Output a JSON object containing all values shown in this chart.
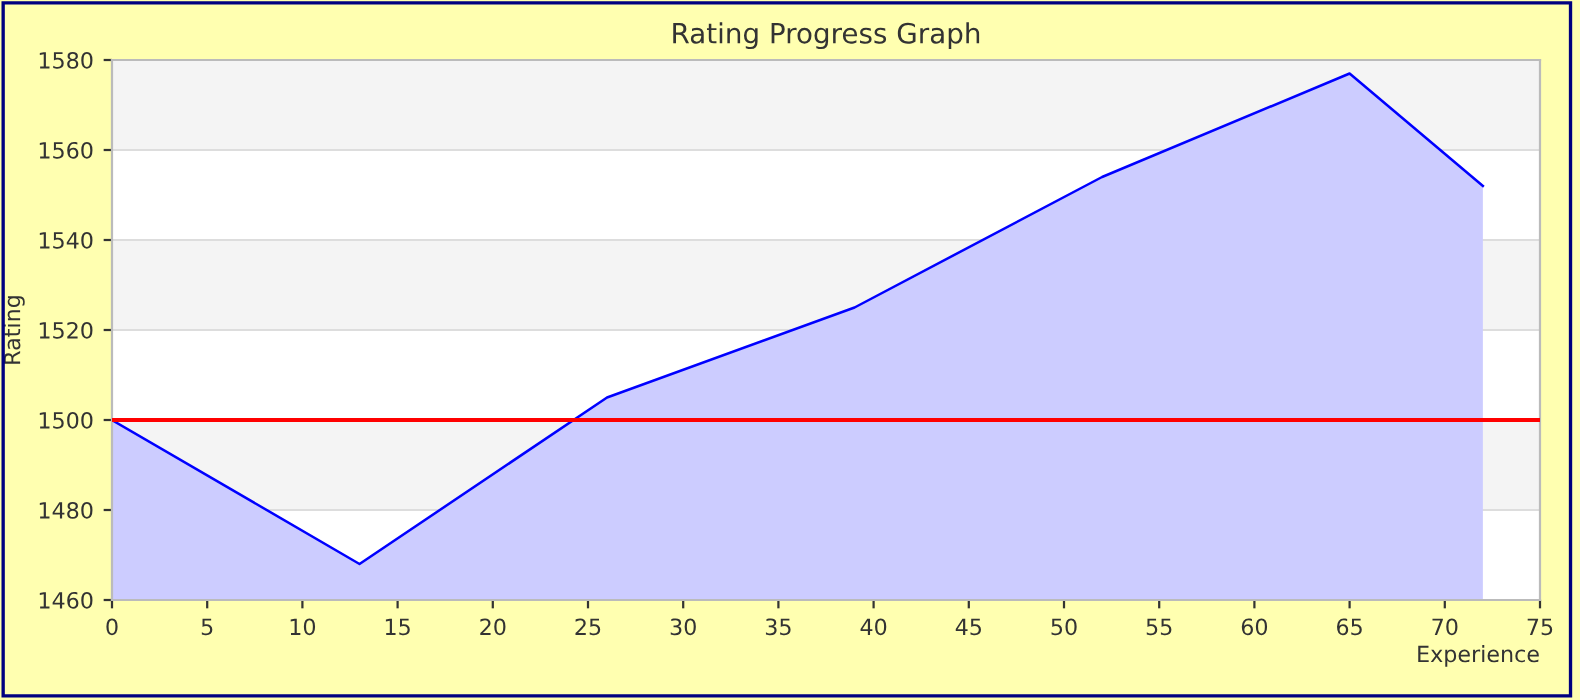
{
  "chart_data": {
    "type": "area",
    "title": "Rating Progress Graph",
    "xlabel": "Experience",
    "ylabel": "Rating",
    "x": [
      0,
      13,
      26,
      39,
      52,
      65,
      72
    ],
    "series": [
      {
        "color": "#0000ff",
        "values": [
          1500,
          1468,
          1505,
          1525,
          1554,
          1577,
          1552
        ]
      }
    ],
    "xlim": [
      0,
      75
    ],
    "xticks": [
      0,
      5,
      10,
      15,
      20,
      25,
      30,
      35,
      40,
      45,
      50,
      55,
      60,
      65,
      70,
      75
    ],
    "ylim": [
      1460,
      1580
    ],
    "yticks": [
      1460,
      1480,
      1500,
      1520,
      1540,
      1560,
      1580
    ],
    "ref_lines": [
      {
        "axis": "y",
        "value": 1500,
        "color": "#ff0000"
      }
    ],
    "grid": "y"
  }
}
